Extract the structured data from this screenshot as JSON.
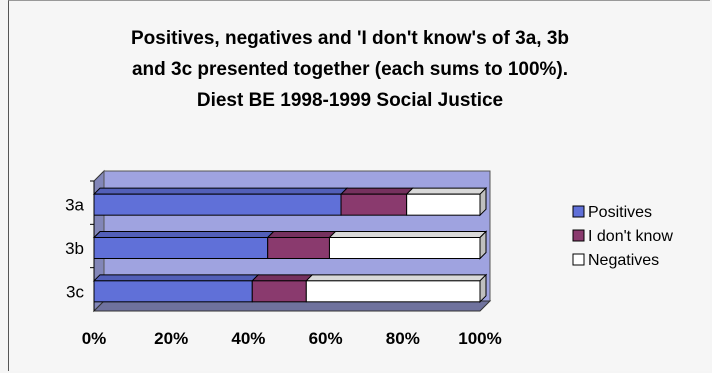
{
  "chart_data": {
    "type": "bar",
    "orientation": "horizontal",
    "stacked": true,
    "title": [
      "Positives, negatives and 'I don't know's of 3a, 3b",
      "and 3c presented together (each sums to 100%).",
      "Diest BE 1998-1999 Social Justice"
    ],
    "categories": [
      "3a",
      "3b",
      "3c"
    ],
    "series": [
      {
        "name": "Positives",
        "values": [
          64,
          45,
          41
        ],
        "color": "#6070d8"
      },
      {
        "name": "I don't know",
        "values": [
          17,
          16,
          14
        ],
        "color": "#8a3a6e"
      },
      {
        "name": "Negatives",
        "values": [
          19,
          39,
          45
        ],
        "color": "#ffffff"
      }
    ],
    "xlim": [
      0,
      100
    ],
    "x_ticks": [
      "0%",
      "20%",
      "40%",
      "60%",
      "80%",
      "100%"
    ],
    "legend_position": "right",
    "plot_background": "#9fa3e0",
    "grid": false
  }
}
